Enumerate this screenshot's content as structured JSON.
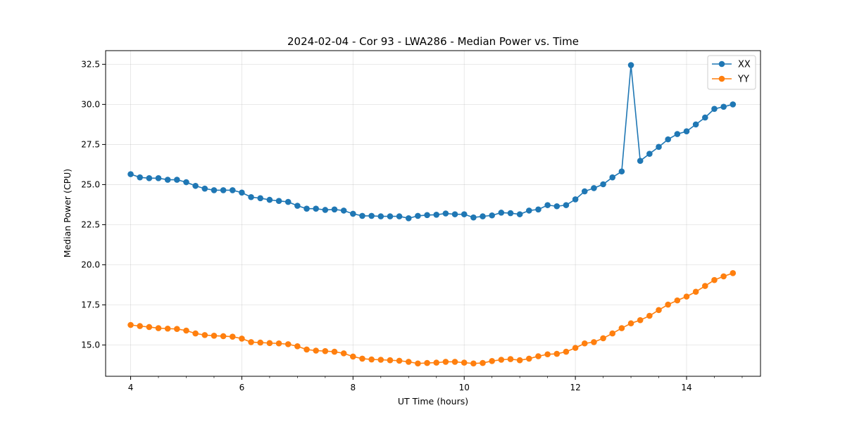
{
  "chart_data": {
    "type": "line",
    "title": "2024-02-04 - Cor 93 - LWA286 - Median Power vs. Time",
    "xlabel": "UT Time (hours)",
    "ylabel": "Median Power (CPU)",
    "xlim": [
      3.55,
      15.33
    ],
    "ylim": [
      13.05,
      33.35
    ],
    "xticks": [
      4,
      6,
      8,
      10,
      12,
      14
    ],
    "xtick_labels": [
      "4",
      "6",
      "8",
      "10",
      "12",
      "14"
    ],
    "yticks": [
      15.0,
      17.5,
      20.0,
      22.5,
      25.0,
      27.5,
      30.0,
      32.5
    ],
    "ytick_labels": [
      "15.0",
      "17.5",
      "20.0",
      "22.5",
      "25.0",
      "27.5",
      "30.0",
      "32.5"
    ],
    "grid": true,
    "legend": "top-right",
    "x": [
      4.0,
      4.1667,
      4.3333,
      4.5,
      4.6667,
      4.8333,
      5.0,
      5.1667,
      5.3333,
      5.5,
      5.6667,
      5.8333,
      6.0,
      6.1667,
      6.3333,
      6.5,
      6.6667,
      6.8333,
      7.0,
      7.1667,
      7.3333,
      7.5,
      7.6667,
      7.8333,
      8.0,
      8.1667,
      8.3333,
      8.5,
      8.6667,
      8.8333,
      9.0,
      9.1667,
      9.3333,
      9.5,
      9.6667,
      9.8333,
      10.0,
      10.1667,
      10.3333,
      10.5,
      10.6667,
      10.8333,
      11.0,
      11.1667,
      11.3333,
      11.5,
      11.6667,
      11.8333,
      12.0,
      12.1667,
      12.3333,
      12.5,
      12.6667,
      12.8333,
      13.0,
      13.1667,
      13.3333,
      13.5,
      13.6667,
      13.8333,
      14.0,
      14.1667,
      14.3333,
      14.5,
      14.6667,
      14.8333
    ],
    "series": [
      {
        "name": "XX",
        "color": "#1f77b4",
        "values": [
          25.65,
          25.45,
          25.4,
          25.4,
          25.3,
          25.3,
          25.15,
          24.92,
          24.75,
          24.65,
          24.65,
          24.65,
          24.5,
          24.22,
          24.15,
          24.05,
          23.98,
          23.92,
          23.68,
          23.5,
          23.5,
          23.42,
          23.45,
          23.38,
          23.18,
          23.05,
          23.05,
          23.02,
          23.02,
          23.02,
          22.9,
          23.05,
          23.1,
          23.12,
          23.2,
          23.15,
          23.15,
          22.95,
          23.02,
          23.08,
          23.25,
          23.22,
          23.15,
          23.38,
          23.45,
          23.72,
          23.65,
          23.72,
          24.08,
          24.58,
          24.78,
          25.02,
          25.45,
          25.82,
          32.45,
          26.48,
          26.92,
          27.35,
          27.82,
          28.15,
          28.32,
          28.75,
          29.18,
          29.72,
          29.85,
          30.0
        ]
      },
      {
        "name": "YY",
        "color": "#ff7f0e",
        "values": [
          16.25,
          16.18,
          16.12,
          16.05,
          16.02,
          16.0,
          15.9,
          15.72,
          15.62,
          15.58,
          15.55,
          15.52,
          15.4,
          15.18,
          15.15,
          15.12,
          15.1,
          15.05,
          14.92,
          14.72,
          14.65,
          14.62,
          14.58,
          14.48,
          14.28,
          14.15,
          14.1,
          14.08,
          14.05,
          14.02,
          13.95,
          13.85,
          13.88,
          13.9,
          13.95,
          13.95,
          13.9,
          13.85,
          13.88,
          14.0,
          14.08,
          14.12,
          14.05,
          14.15,
          14.3,
          14.42,
          14.45,
          14.58,
          14.82,
          15.1,
          15.18,
          15.42,
          15.72,
          16.05,
          16.35,
          16.55,
          16.82,
          17.18,
          17.52,
          17.78,
          18.02,
          18.32,
          18.68,
          19.05,
          19.28,
          19.48
        ]
      }
    ]
  }
}
